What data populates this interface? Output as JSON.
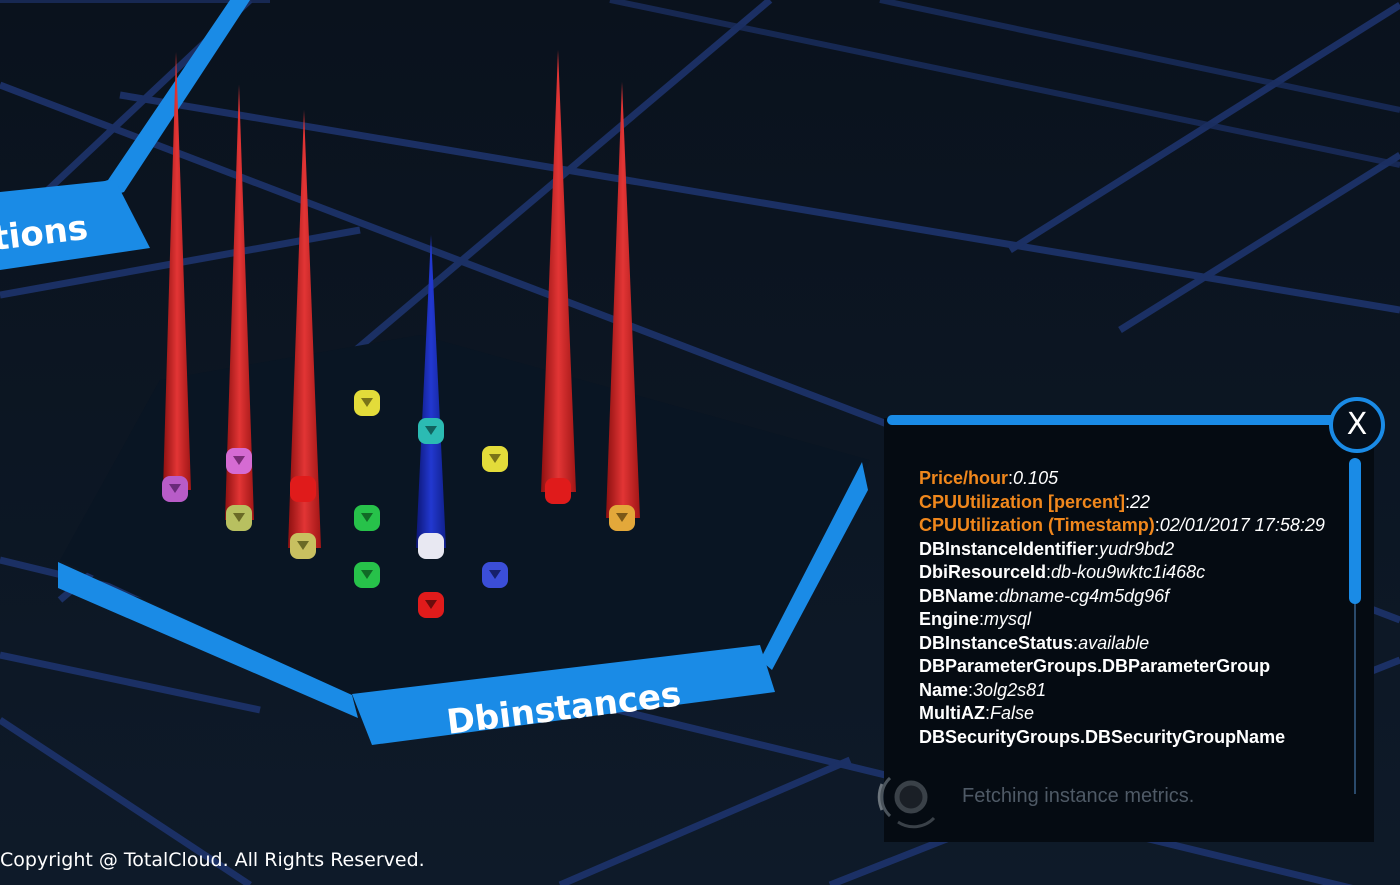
{
  "scene": {
    "left_region_label": "tions",
    "center_region_label": "Dbinstances",
    "spikes": [
      {
        "name": "db-spike-1",
        "color": "#d42a2a",
        "level": "high"
      },
      {
        "name": "db-spike-2",
        "color": "#d42a2a",
        "level": "high"
      },
      {
        "name": "db-spike-3",
        "color": "#d42a2a",
        "level": "high"
      },
      {
        "name": "db-spike-4",
        "color": "#1c2fb8",
        "level": "medium"
      },
      {
        "name": "db-spike-5",
        "color": "#d42a2a",
        "level": "high"
      },
      {
        "name": "db-spike-6",
        "color": "#d42a2a",
        "level": "high"
      }
    ],
    "node_colors": {
      "yellow": "#e3dc3a",
      "green": "#27c24a",
      "pink": "#d56bd3",
      "red": "#e01b1b",
      "blue": "#3b4ed8",
      "teal": "#2bbbb3",
      "white": "#e8e8f2"
    }
  },
  "details_panel": {
    "close_label": "X",
    "rows": [
      {
        "key": "Price/hour",
        "value": "0.105",
        "metric": true
      },
      {
        "key": "CPUUtilization [percent]",
        "value": "22",
        "metric": true
      },
      {
        "key": "CPUUtilization (Timestamp)",
        "value": "02/01/2017 17:58:29",
        "metric": true
      },
      {
        "key": "DBInstanceIdentifier",
        "value": "yudr9bd2",
        "metric": false
      },
      {
        "key": "DbiResourceId",
        "value": "db-kou9wktc1i468c",
        "metric": false
      },
      {
        "key": "DBName",
        "value": "dbname-cg4m5dg96f",
        "metric": false
      },
      {
        "key": "Engine",
        "value": "mysql",
        "metric": false
      },
      {
        "key": "DBInstanceStatus",
        "value": "available",
        "metric": false
      },
      {
        "key": "DBParameterGroups.DBParameterGroup Name",
        "value": "3olg2s81",
        "metric": false
      },
      {
        "key": "MultiAZ",
        "value": "False",
        "metric": false
      },
      {
        "key": "DBSecurityGroups.DBSecurityGroupName",
        "value": "",
        "metric": false
      }
    ],
    "loading_text": "Fetching instance metrics."
  },
  "footer": {
    "copyright": "Copyright @ TotalCloud. All Rights Reserved."
  },
  "colors": {
    "accent": "#1a8be6",
    "metric_key": "#f0871c",
    "background": "#0b1420"
  }
}
